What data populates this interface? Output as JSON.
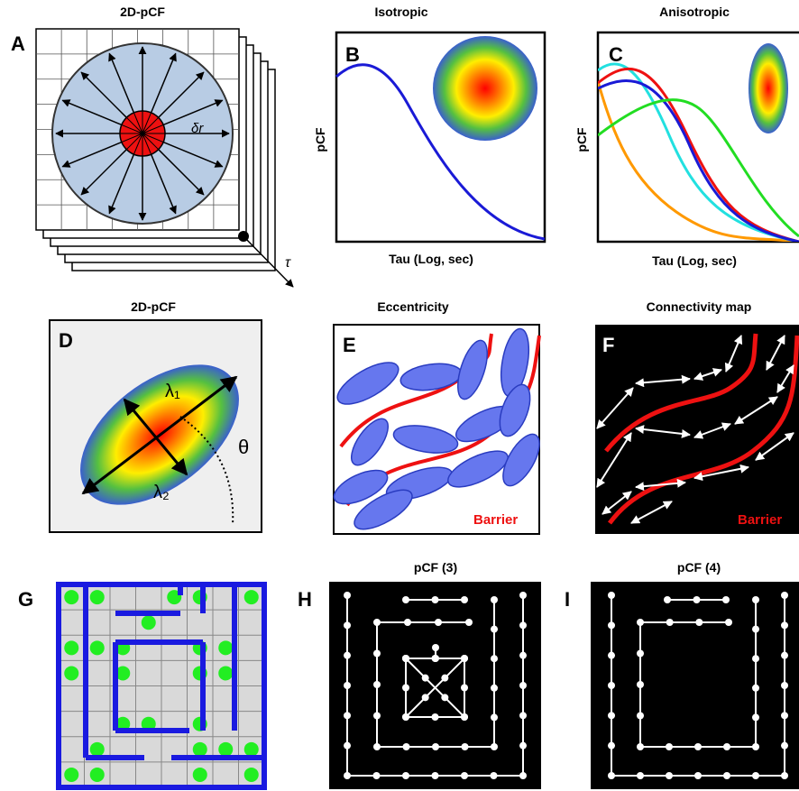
{
  "panels": [
    {
      "label": "A",
      "title": "2D-pCF",
      "radius_label": "δr",
      "axis_label": "τ"
    },
    {
      "label": "B",
      "title": "Isotropic",
      "y_label": "pCF",
      "x_label": "Tau (Log, sec)"
    },
    {
      "label": "C",
      "title": "Anisotropic",
      "y_label": "pCF",
      "x_label": "Tau (Log, sec)"
    },
    {
      "label": "D",
      "title": "2D-pCF",
      "major_axis": "λ₁",
      "minor_axis": "λ₂",
      "angle": "θ"
    },
    {
      "label": "E",
      "title": "Eccentricity",
      "barrier": "Barrier"
    },
    {
      "label": "F",
      "title": "Connectivity map",
      "barrier": "Barrier"
    },
    {
      "label": "G"
    },
    {
      "label": "H",
      "title": "pCF (3)"
    },
    {
      "label": "I",
      "title": "pCF (4)"
    }
  ]
}
